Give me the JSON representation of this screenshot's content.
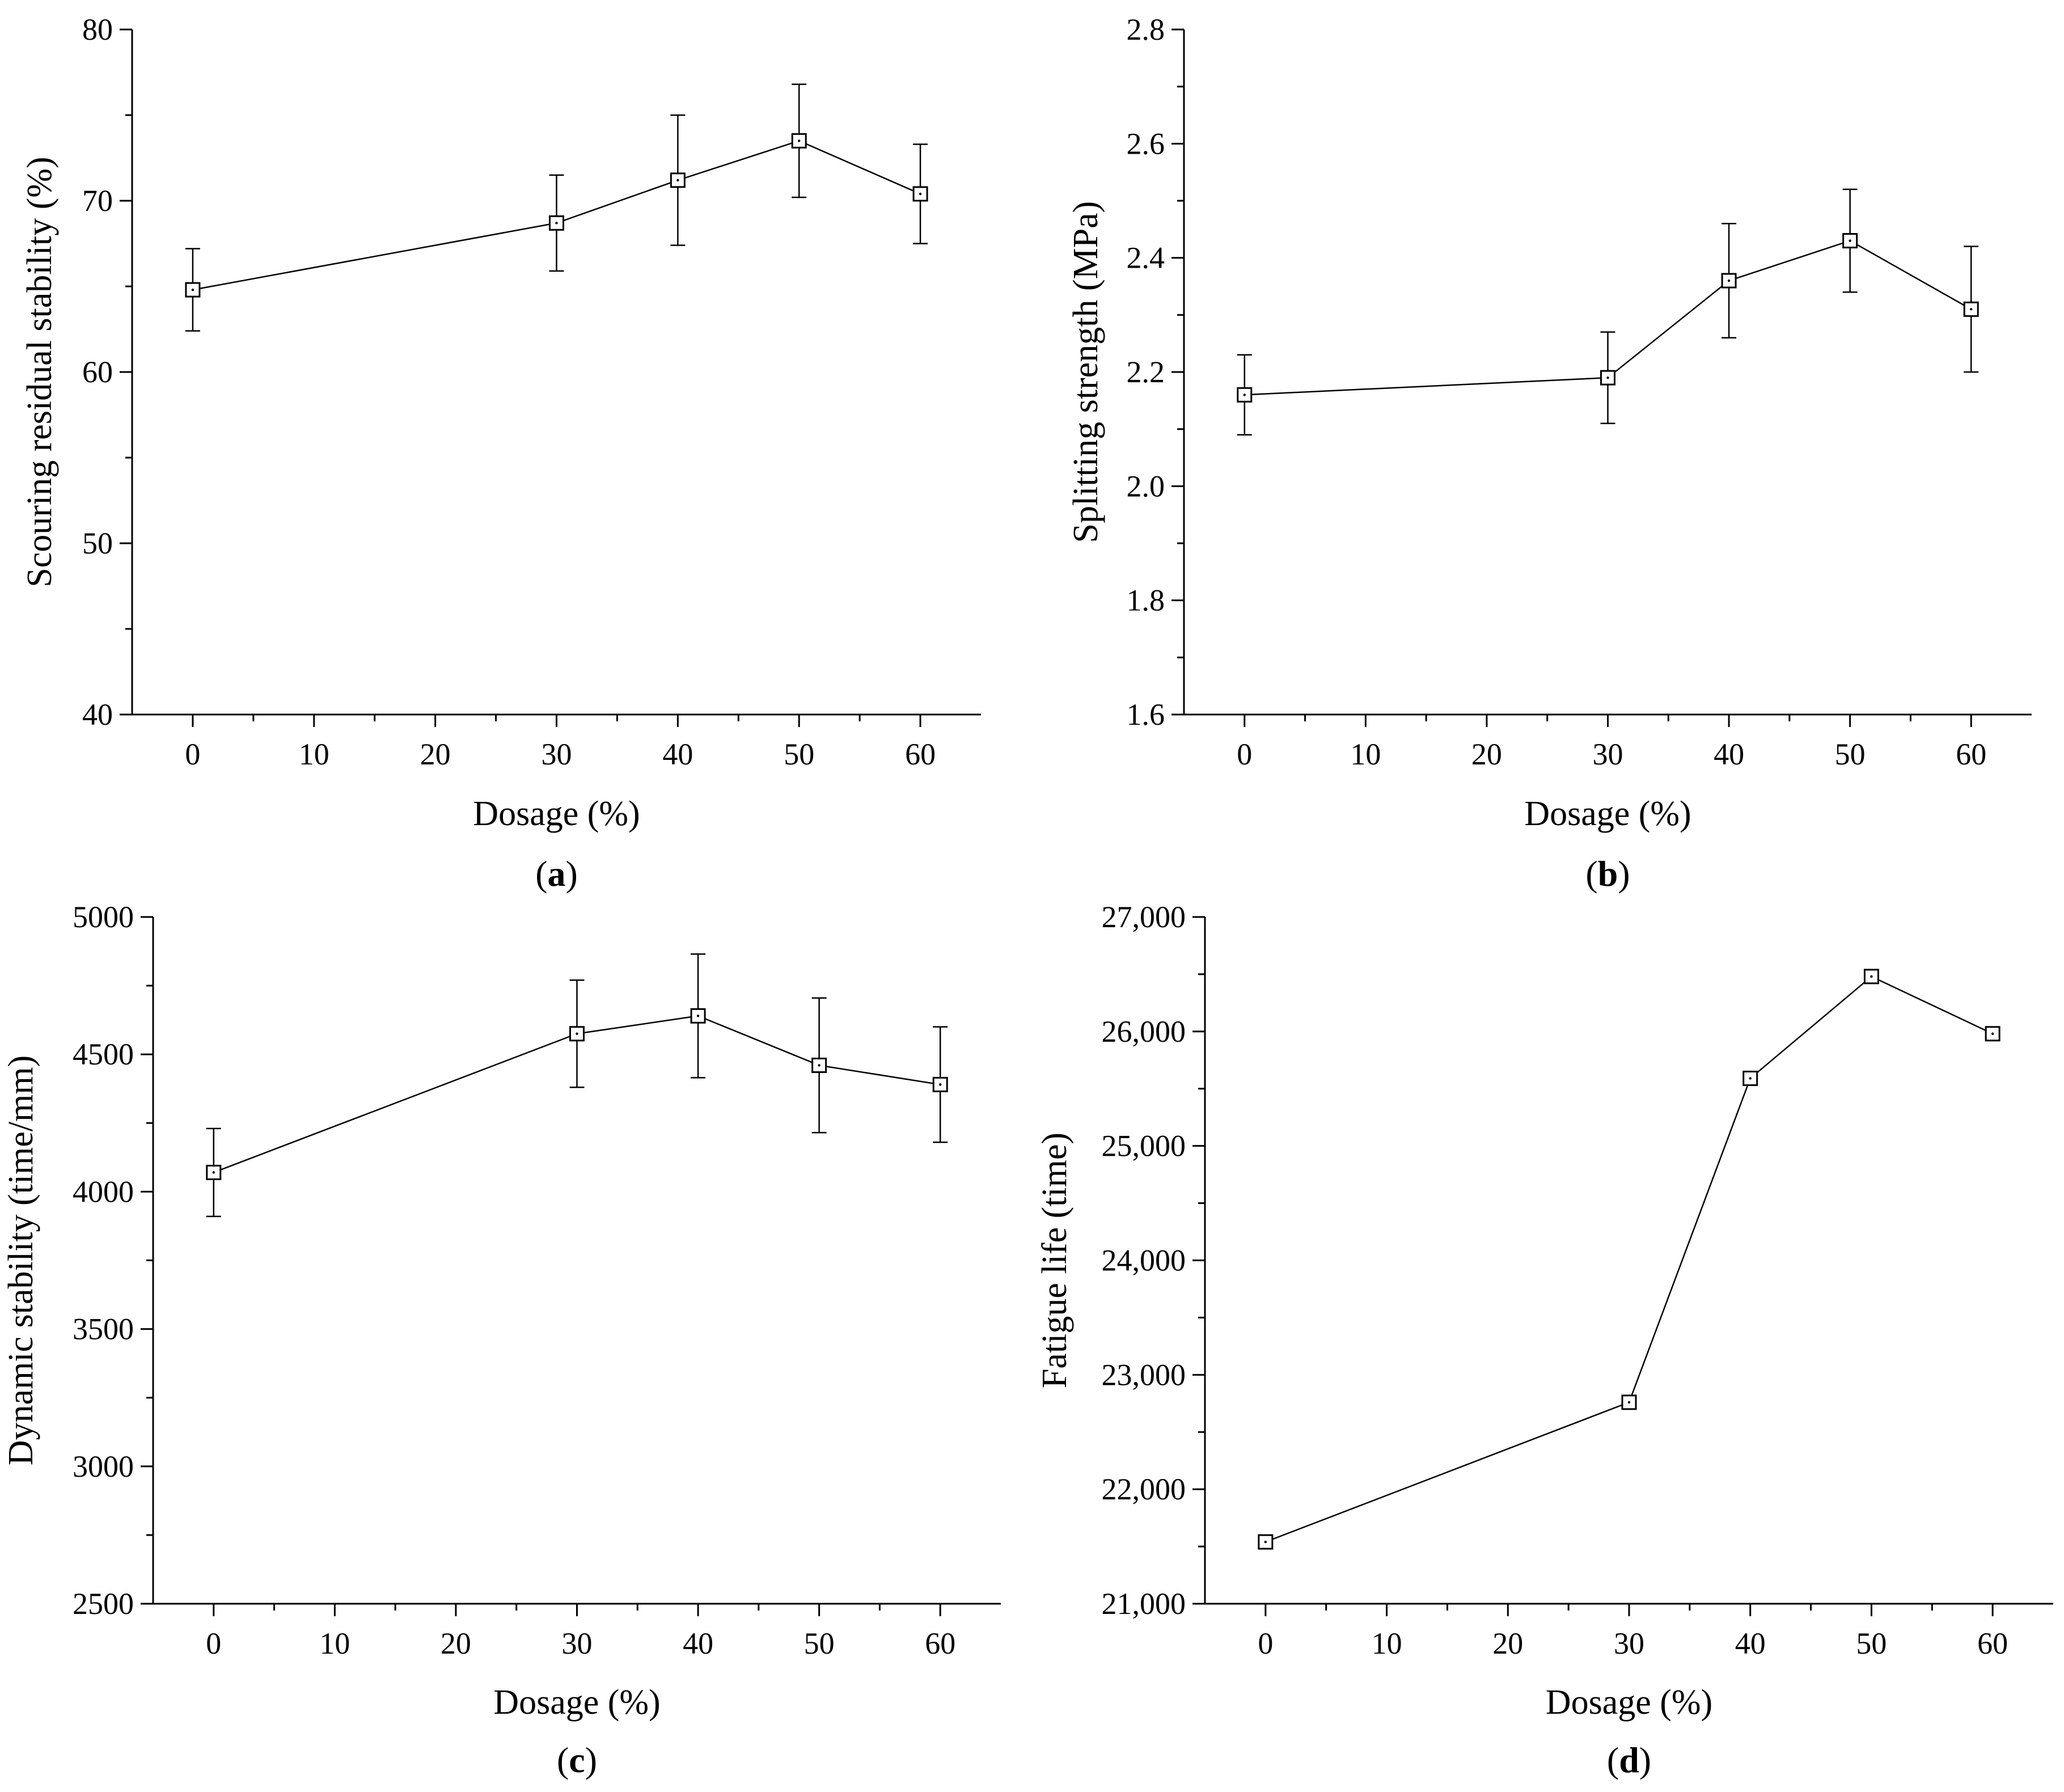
{
  "figure": {
    "panels": [
      {
        "id": "a",
        "label_open": "(",
        "label_letter": "a",
        "label_close": ")"
      },
      {
        "id": "b",
        "label_open": "(",
        "label_letter": "b",
        "label_close": ")"
      },
      {
        "id": "c",
        "label_open": "(",
        "label_letter": "c",
        "label_close": ")"
      },
      {
        "id": "d",
        "label_open": "(",
        "label_letter": "d",
        "label_close": ")"
      }
    ]
  },
  "chart_data": [
    {
      "panel": "a",
      "type": "line",
      "xlabel": "Dosage (%)",
      "ylabel": "Scouring residual stability (%)",
      "xlim": [
        -5,
        65
      ],
      "ylim": [
        40,
        80
      ],
      "xticks": [
        0,
        10,
        20,
        30,
        40,
        50,
        60
      ],
      "xtick_labels": [
        "0",
        "10",
        "20",
        "30",
        "40",
        "50",
        "60"
      ],
      "yticks": [
        40,
        50,
        60,
        70,
        80
      ],
      "ytick_labels": [
        "40",
        "50",
        "60",
        "70",
        "80"
      ],
      "x": [
        0,
        30,
        40,
        50,
        60
      ],
      "y": [
        64.8,
        68.7,
        71.2,
        73.5,
        70.4
      ],
      "error": [
        2.4,
        2.8,
        3.8,
        3.3,
        2.9
      ],
      "marker": "open-square",
      "color": "#000000"
    },
    {
      "panel": "b",
      "type": "line",
      "xlabel": "Dosage (%)",
      "ylabel": "Splitting strength (MPa)",
      "xlim": [
        -5,
        65
      ],
      "ylim": [
        1.6,
        2.8
      ],
      "xticks": [
        0,
        10,
        20,
        30,
        40,
        50,
        60
      ],
      "xtick_labels": [
        "0",
        "10",
        "20",
        "30",
        "40",
        "50",
        "60"
      ],
      "yticks": [
        1.6,
        1.8,
        2.0,
        2.2,
        2.4,
        2.6,
        2.8
      ],
      "ytick_labels": [
        "1.6",
        "1.8",
        "2.0",
        "2.2",
        "2.4",
        "2.6",
        "2.8"
      ],
      "x": [
        0,
        30,
        40,
        50,
        60
      ],
      "y": [
        2.16,
        2.19,
        2.36,
        2.43,
        2.31
      ],
      "error": [
        0.07,
        0.08,
        0.1,
        0.09,
        0.11
      ],
      "marker": "open-square",
      "color": "#000000"
    },
    {
      "panel": "c",
      "type": "line",
      "xlabel": "Dosage (%)",
      "ylabel": "Dynamic stability (time/mm)",
      "xlim": [
        -5,
        65
      ],
      "ylim": [
        2500,
        5000
      ],
      "xticks": [
        0,
        10,
        20,
        30,
        40,
        50,
        60
      ],
      "xtick_labels": [
        "0",
        "10",
        "20",
        "30",
        "40",
        "50",
        "60"
      ],
      "yticks": [
        2500,
        3000,
        3500,
        4000,
        4500,
        5000
      ],
      "ytick_labels": [
        "2500",
        "3000",
        "3500",
        "4000",
        "4500",
        "5000"
      ],
      "x": [
        0,
        30,
        40,
        50,
        60
      ],
      "y": [
        4070,
        4575,
        4640,
        4460,
        4390
      ],
      "error": [
        160,
        195,
        225,
        245,
        210
      ],
      "marker": "open-square",
      "color": "#000000"
    },
    {
      "panel": "d",
      "type": "line",
      "xlabel": "Dosage (%)",
      "ylabel": "Fatigue life (time)",
      "xlim": [
        -5,
        65
      ],
      "ylim": [
        21000,
        27000
      ],
      "xticks": [
        0,
        10,
        20,
        30,
        40,
        50,
        60
      ],
      "xtick_labels": [
        "0",
        "10",
        "20",
        "30",
        "40",
        "50",
        "60"
      ],
      "yticks": [
        21000,
        22000,
        23000,
        24000,
        25000,
        26000,
        27000
      ],
      "ytick_labels": [
        "21,000",
        "22,000",
        "23,000",
        "24,000",
        "25,000",
        "26,000",
        "27,000"
      ],
      "x": [
        0,
        30,
        40,
        50,
        60
      ],
      "y": [
        21540,
        22760,
        25590,
        26480,
        25980
      ],
      "error": null,
      "marker": "open-square",
      "color": "#000000"
    }
  ]
}
